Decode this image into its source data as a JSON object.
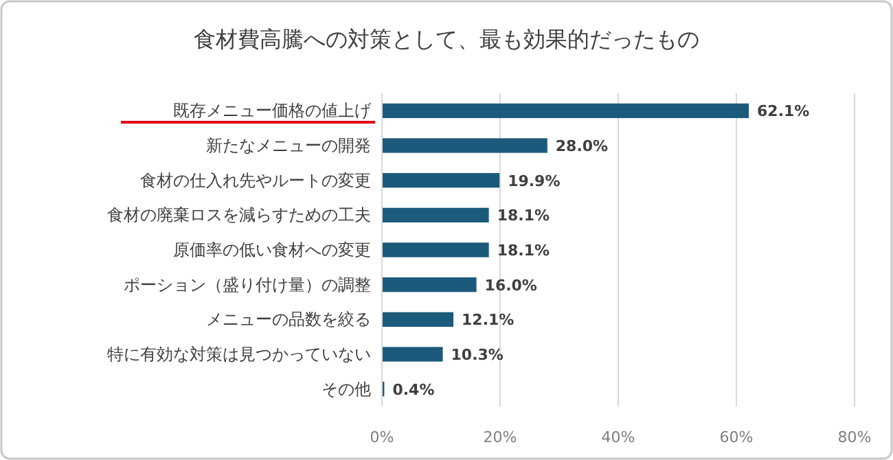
{
  "chart_data": {
    "type": "bar",
    "orientation": "horizontal",
    "title": "食材費高騰への対策として、最も効果的だったもの",
    "categories": [
      "既存メニュー価格の値上げ",
      "新たなメニューの開発",
      "食材の仕入れ先やルートの変更",
      "食材の廃棄ロスを減らすための工夫",
      "原価率の低い食材への変更",
      "ポーション（盛り付け量）の調整",
      "メニューの品数を絞る",
      "特に有効な対策は見つかっていない",
      "その他"
    ],
    "values": [
      62.1,
      28.0,
      19.9,
      18.1,
      18.1,
      16.0,
      12.1,
      10.3,
      0.4
    ],
    "value_labels": [
      "62.1%",
      "28.0%",
      "19.9%",
      "18.1%",
      "18.1%",
      "16.0%",
      "12.1%",
      "10.3%",
      "0.4%"
    ],
    "color": "#1b5a7a",
    "xlim": [
      0,
      80
    ],
    "xticks": [
      {
        "value": 0,
        "label": "0%"
      },
      {
        "value": 20,
        "label": "20%"
      },
      {
        "value": 40,
        "label": "40%"
      },
      {
        "value": 60,
        "label": "60%"
      },
      {
        "value": 80,
        "label": "80%"
      }
    ],
    "grid": "x"
  }
}
